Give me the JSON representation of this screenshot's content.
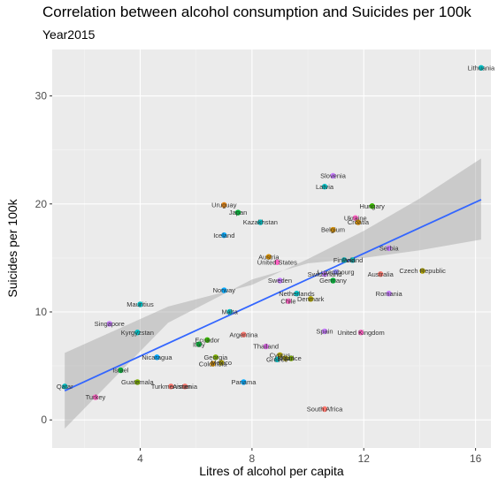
{
  "chart_data": {
    "type": "scatter",
    "title": "Correlation between alcohol consumption and Suicides per 100k",
    "subtitle": "Year2015",
    "xlabel": "Litres of alcohol per capita",
    "ylabel": "Suicides per 100k",
    "xlim": [
      0.85,
      16.55
    ],
    "ylim": [
      -2.6,
      34.3
    ],
    "xticks": [
      4,
      8,
      12,
      16
    ],
    "yticks": [
      0,
      10,
      20,
      30
    ],
    "x_tick_labels": [
      "4",
      "8",
      "12",
      "16"
    ],
    "y_tick_labels": [
      "0",
      "10",
      "20",
      "30"
    ],
    "grid": true,
    "background": "#EBEBEB",
    "trend": {
      "method": "linear",
      "color": "#3366FF",
      "band_color": "#999999",
      "x_range": [
        1.3,
        16.2
      ],
      "fit": [
        [
          1.3,
          2.7
        ],
        [
          16.2,
          20.4
        ]
      ],
      "ci_low": [
        [
          1.3,
          -0.8
        ],
        [
          5.0,
          9.0
        ],
        [
          8.0,
          13.0
        ],
        [
          10.0,
          14.5
        ],
        [
          12.0,
          15.0
        ],
        [
          14.0,
          15.7
        ],
        [
          16.2,
          16.7
        ]
      ],
      "ci_high": [
        [
          1.3,
          6.2
        ],
        [
          5.0,
          10.5
        ],
        [
          8.0,
          12.5
        ],
        [
          10.0,
          14.9
        ],
        [
          12.0,
          17.5
        ],
        [
          14.0,
          20.5
        ],
        [
          16.2,
          24.2
        ]
      ]
    },
    "points": [
      {
        "label": "Lithuania",
        "x": 16.2,
        "y": 32.6,
        "color": "#00BFC4"
      },
      {
        "label": "Slovenia",
        "x": 10.9,
        "y": 22.6,
        "color": "#C77CFF"
      },
      {
        "label": "Latvia",
        "x": 10.6,
        "y": 21.6,
        "color": "#00BFC4"
      },
      {
        "label": "Hungary",
        "x": 12.3,
        "y": 19.8,
        "color": "#39B600"
      },
      {
        "label": "Uruguay",
        "x": 7.0,
        "y": 19.9,
        "color": "#E68613"
      },
      {
        "label": "Japan",
        "x": 7.5,
        "y": 19.2,
        "color": "#00BA38"
      },
      {
        "label": "Kazakhstan",
        "x": 8.3,
        "y": 18.3,
        "color": "#00BFC4"
      },
      {
        "label": "Ukraine",
        "x": 11.7,
        "y": 18.7,
        "color": "#FF61C3"
      },
      {
        "label": "Croatia",
        "x": 11.8,
        "y": 18.3,
        "color": "#D89000"
      },
      {
        "label": "Belgium",
        "x": 10.9,
        "y": 17.6,
        "color": "#D89000"
      },
      {
        "label": "Iceland",
        "x": 7.0,
        "y": 17.1,
        "color": "#00A9FF"
      },
      {
        "label": "Serbia",
        "x": 12.9,
        "y": 15.9,
        "color": "#C77CFF"
      },
      {
        "label": "Austria",
        "x": 8.6,
        "y": 15.1,
        "color": "#D89000"
      },
      {
        "label": "United States",
        "x": 8.9,
        "y": 14.6,
        "color": "#FF61C3"
      },
      {
        "label": "Poland",
        "x": 11.6,
        "y": 14.8,
        "color": "#00BFC4"
      },
      {
        "label": "Finland",
        "x": 11.3,
        "y": 14.8,
        "color": "#00BFC4"
      },
      {
        "label": "Czech Republic",
        "x": 14.1,
        "y": 13.8,
        "color": "#AEA200"
      },
      {
        "label": "Switzerland",
        "x": 10.6,
        "y": 13.5,
        "color": "#C77CFF"
      },
      {
        "label": "Luxembourg",
        "x": 11.0,
        "y": 13.7,
        "color": "#9590FF"
      },
      {
        "label": "Australia",
        "x": 12.6,
        "y": 13.5,
        "color": "#F8766D"
      },
      {
        "label": "Sweden",
        "x": 9.0,
        "y": 12.9,
        "color": "#C77CFF"
      },
      {
        "label": "Germany",
        "x": 10.9,
        "y": 12.9,
        "color": "#00BA38"
      },
      {
        "label": "Norway",
        "x": 7.0,
        "y": 12.0,
        "color": "#00A9FF"
      },
      {
        "label": "Romania",
        "x": 12.9,
        "y": 11.7,
        "color": "#C77CFF"
      },
      {
        "label": "Netherlands",
        "x": 9.6,
        "y": 11.7,
        "color": "#00BFC4"
      },
      {
        "label": "Chile",
        "x": 9.3,
        "y": 11.0,
        "color": "#FF61C3"
      },
      {
        "label": "Denmark",
        "x": 10.1,
        "y": 11.2,
        "color": "#AEA200"
      },
      {
        "label": "Mauritius",
        "x": 4.0,
        "y": 10.7,
        "color": "#00BFC4"
      },
      {
        "label": "Malta",
        "x": 7.2,
        "y": 10.0,
        "color": "#00BFC4"
      },
      {
        "label": "Singapore",
        "x": 2.9,
        "y": 8.9,
        "color": "#C77CFF"
      },
      {
        "label": "Kyrgyzstan",
        "x": 3.9,
        "y": 8.1,
        "color": "#00BFC4"
      },
      {
        "label": "Spain",
        "x": 10.6,
        "y": 8.2,
        "color": "#C77CFF"
      },
      {
        "label": "United Kingdom",
        "x": 11.9,
        "y": 8.1,
        "color": "#FF61C3"
      },
      {
        "label": "Argentina",
        "x": 7.7,
        "y": 7.9,
        "color": "#F8766D"
      },
      {
        "label": "Ecuador",
        "x": 6.4,
        "y": 7.4,
        "color": "#39B600"
      },
      {
        "label": "Italy",
        "x": 6.1,
        "y": 7.0,
        "color": "#00BA38"
      },
      {
        "label": "Thailand",
        "x": 8.5,
        "y": 6.8,
        "color": "#E76BF3"
      },
      {
        "label": "Cyprus",
        "x": 9.0,
        "y": 6.0,
        "color": "#AEA200"
      },
      {
        "label": "Brazil",
        "x": 9.2,
        "y": 5.7,
        "color": "#AEA200"
      },
      {
        "label": "Greece",
        "x": 8.9,
        "y": 5.6,
        "color": "#00BFC4"
      },
      {
        "label": "France",
        "x": 9.4,
        "y": 5.7,
        "color": "#7CAE00"
      },
      {
        "label": "Nicaragua",
        "x": 4.6,
        "y": 5.8,
        "color": "#00A9FF"
      },
      {
        "label": "Georgia",
        "x": 6.7,
        "y": 5.8,
        "color": "#7CAE00"
      },
      {
        "label": "Mexico",
        "x": 6.9,
        "y": 5.3,
        "color": "#AEA200"
      },
      {
        "label": "Colombia",
        "x": 6.6,
        "y": 5.2,
        "color": "#D89000"
      },
      {
        "label": "Israel",
        "x": 3.3,
        "y": 4.6,
        "color": "#00BA38"
      },
      {
        "label": "Guatemala",
        "x": 3.9,
        "y": 3.5,
        "color": "#7CAE00"
      },
      {
        "label": "Panama",
        "x": 7.7,
        "y": 3.5,
        "color": "#00A9FF"
      },
      {
        "label": "Turkmenistan",
        "x": 5.1,
        "y": 3.1,
        "color": "#F8766D"
      },
      {
        "label": "Armenia",
        "x": 5.6,
        "y": 3.1,
        "color": "#F8766D"
      },
      {
        "label": "Qatar",
        "x": 1.3,
        "y": 3.1,
        "color": "#00BFC4"
      },
      {
        "label": "Turkey",
        "x": 2.4,
        "y": 2.1,
        "color": "#FF61C3"
      },
      {
        "label": "South Africa",
        "x": 10.6,
        "y": 1.0,
        "color": "#F8766D"
      }
    ]
  }
}
